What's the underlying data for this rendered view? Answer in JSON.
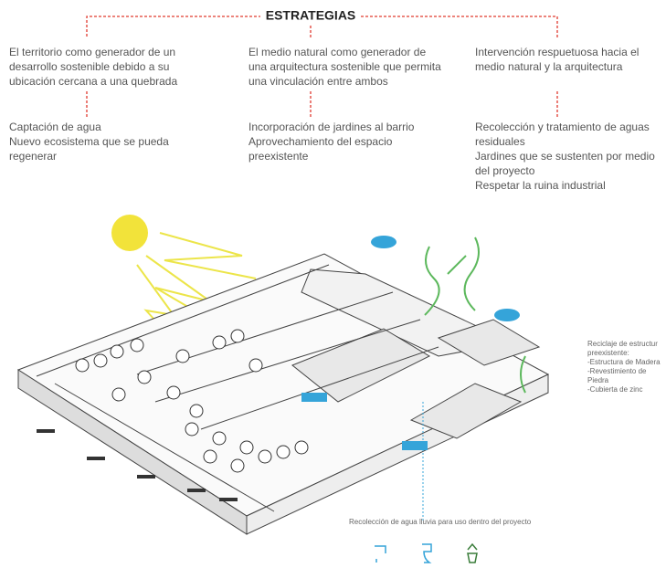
{
  "title": "ESTRATEGIAS",
  "columns": [
    {
      "intro": [
        "El territorio como generador de un",
        "desarrollo sostenible debido a su",
        "ubicación cercana a una quebrada"
      ],
      "items": [
        "Captación de agua",
        "Nuevo ecosistema que se pueda",
        "regenerar"
      ]
    },
    {
      "intro": [
        "El medio natural como generador de",
        "una arquitectura sostenible que permita",
        "una vinculación entre ambos"
      ],
      "items": [
        "Incorporación de jardines al barrio",
        "Aprovechamiento del espacio",
        "preexistente"
      ]
    },
    {
      "intro": [
        "Intervención respuetuosa hacia el",
        "medio natural y la arquitectura"
      ],
      "items": [
        "Recolección y tratamiento de aguas",
        "residuales",
        "Jardines que se sustenten por medio",
        "del proyecto",
        "Respetar la ruina industrial"
      ]
    }
  ],
  "side_note": [
    "Reciclaje de estructur",
    "preexistente:",
    "-Estructura de Madera",
    "-Revestimiento de",
    "Piedra",
    "-Cubierta de zinc"
  ],
  "caption": "Recolección de agua lluvia para uso dentro del proyecto"
}
